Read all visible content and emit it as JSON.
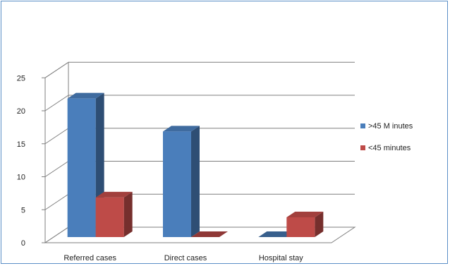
{
  "chart_data": {
    "type": "bar",
    "style": "3d-clustered-column",
    "categories": [
      "Referred cases",
      "Direct cases",
      "Hospital stay"
    ],
    "series": [
      {
        "name": ">45 M inutes",
        "values": [
          21,
          16,
          0
        ],
        "color": "#4a7ebb"
      },
      {
        "name": "<45  minutes",
        "values": [
          6,
          0,
          3
        ],
        "color": "#be4b48"
      }
    ],
    "ylim": [
      0,
      25
    ],
    "yticks": [
      0,
      5,
      10,
      15,
      20,
      25
    ],
    "grid": true,
    "legend": "right"
  }
}
